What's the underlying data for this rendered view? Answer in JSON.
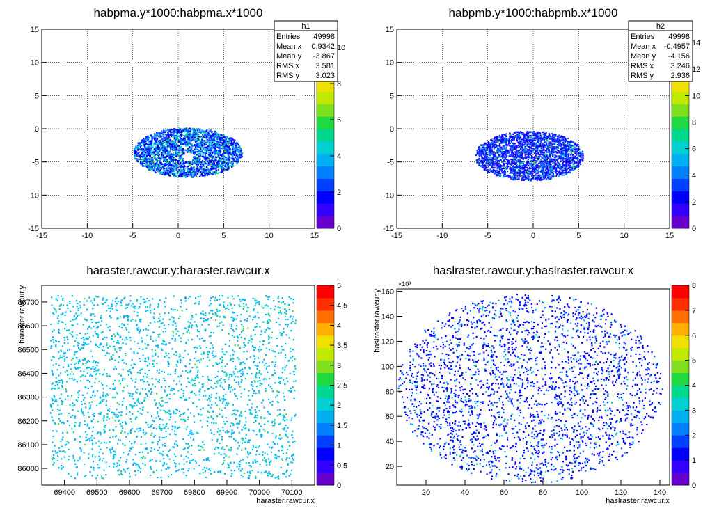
{
  "panels": [
    {
      "title": "habpma.y*1000:habpma.x*1000",
      "xlabel": "",
      "ylabel": "",
      "x_ticks": [
        "-15",
        "-10",
        "-5",
        "0",
        "5",
        "10",
        "15"
      ],
      "y_ticks": [
        "-15",
        "-10",
        "-5",
        "0",
        "5",
        "10",
        "15"
      ],
      "palette_ticks": [
        "0",
        "2",
        "4",
        "6",
        "8",
        "10"
      ],
      "grid": true,
      "stats": {
        "name": "h1",
        "rows": [
          {
            "label": "Entries",
            "value": "49998"
          },
          {
            "label": "Mean x",
            "value": "0.9342"
          },
          {
            "label": "Mean y",
            "value": "-3.867"
          },
          {
            "label": "RMS x",
            "value": "3.581"
          },
          {
            "label": "RMS y",
            "value": "3.023"
          }
        ]
      }
    },
    {
      "title": "habpmb.y*1000:habpmb.x*1000",
      "xlabel": "",
      "ylabel": "",
      "x_ticks": [
        "-15",
        "-10",
        "-5",
        "0",
        "5",
        "10",
        "15"
      ],
      "y_ticks": [
        "-15",
        "-10",
        "-5",
        "0",
        "5",
        "10",
        "15"
      ],
      "palette_ticks": [
        "0",
        "2",
        "4",
        "6",
        "8",
        "10",
        "12",
        "14"
      ],
      "grid": true,
      "stats": {
        "name": "h2",
        "rows": [
          {
            "label": "Entries",
            "value": "49998"
          },
          {
            "label": "Mean x",
            "value": "-0.4957"
          },
          {
            "label": "Mean y",
            "value": "-4.156"
          },
          {
            "label": "RMS x",
            "value": "3.246"
          },
          {
            "label": "RMS y",
            "value": "2.936"
          }
        ]
      }
    },
    {
      "title": "haraster.rawcur.y:haraster.rawcur.x",
      "xlabel": "haraster.rawcur.x",
      "ylabel": "haraster.rawcur.y",
      "x_ticks": [
        "69400",
        "69500",
        "69600",
        "69700",
        "69800",
        "69900",
        "70000",
        "70100"
      ],
      "y_ticks": [
        "86000",
        "86100",
        "86200",
        "86300",
        "86400",
        "86500",
        "86600",
        "86700"
      ],
      "palette_ticks": [
        "0",
        "0.5",
        "1",
        "1.5",
        "2",
        "2.5",
        "3",
        "3.5",
        "4",
        "4.5",
        "5"
      ],
      "grid": false,
      "exponent": ""
    },
    {
      "title": "haslraster.rawcur.y:haslraster.rawcur.x",
      "xlabel": "haslraster.rawcur.x",
      "ylabel": "haslraster.rawcur.y",
      "x_ticks": [
        "20",
        "40",
        "60",
        "80",
        "100",
        "120",
        "140"
      ],
      "y_ticks": [
        "20",
        "40",
        "60",
        "80",
        "100",
        "120",
        "140",
        "160"
      ],
      "palette_ticks": [
        "0",
        "1",
        "2",
        "3",
        "4",
        "5",
        "6",
        "7",
        "8"
      ],
      "grid": false,
      "exponent": "×10³"
    }
  ],
  "chart_data": [
    {
      "type": "heatmap",
      "title": "habpma.y*1000:habpma.x*1000",
      "xlim": [
        -15,
        15
      ],
      "ylim": [
        -15,
        15
      ],
      "zlim": [
        0,
        11
      ],
      "shape": "ellipse",
      "center": [
        1.0,
        -3.5
      ],
      "semi_axes": [
        6.0,
        6.0
      ],
      "hole_center": [
        1.0,
        -4.2
      ],
      "colors": [
        "#0000ff",
        "#0064ff",
        "#00b4f0",
        "#00d2c8",
        "#28d250",
        "#c8e632"
      ],
      "counts": [
        0.4,
        0.25,
        0.18,
        0.1,
        0.05,
        0.02
      ]
    },
    {
      "type": "heatmap",
      "title": "habpmb.y*1000:habpmb.x*1000",
      "xlim": [
        -15,
        15
      ],
      "ylim": [
        -15,
        15
      ],
      "zlim": [
        0,
        15
      ],
      "shape": "ellipse",
      "center": [
        -0.5,
        -4.0
      ],
      "semi_axes": [
        6.0,
        6.0
      ],
      "colors": [
        "#1e00ff",
        "#0032ff",
        "#0064ff",
        "#00a0f0",
        "#00d2c8",
        "#50dc32"
      ],
      "counts": [
        0.45,
        0.25,
        0.15,
        0.08,
        0.05,
        0.02
      ]
    },
    {
      "type": "heatmap",
      "title": "haraster.rawcur.y:haraster.rawcur.x",
      "xlim": [
        69330,
        70170
      ],
      "ylim": [
        85930,
        86770
      ],
      "zlim": [
        0,
        5
      ],
      "shape": "rect",
      "x_range": [
        69355,
        70110
      ],
      "y_range": [
        85960,
        86730
      ],
      "colors": [
        "#00b4f0",
        "#00c8e6",
        "#00d2b4",
        "#50d250"
      ],
      "counts": [
        0.6,
        0.25,
        0.1,
        0.05
      ]
    },
    {
      "type": "heatmap",
      "title": "haslraster.rawcur.y:haslraster.rawcur.x",
      "xlim": [
        5,
        145
      ],
      "ylim": [
        5,
        162
      ],
      "zlim": [
        0,
        8
      ],
      "shape": "ellipse",
      "center": [
        73,
        83
      ],
      "semi_axes": [
        68,
        76
      ],
      "colors": [
        "#0000ff",
        "#0064ff",
        "#00c8f0",
        "#00d296"
      ],
      "counts": [
        0.7,
        0.2,
        0.08,
        0.02
      ]
    }
  ]
}
